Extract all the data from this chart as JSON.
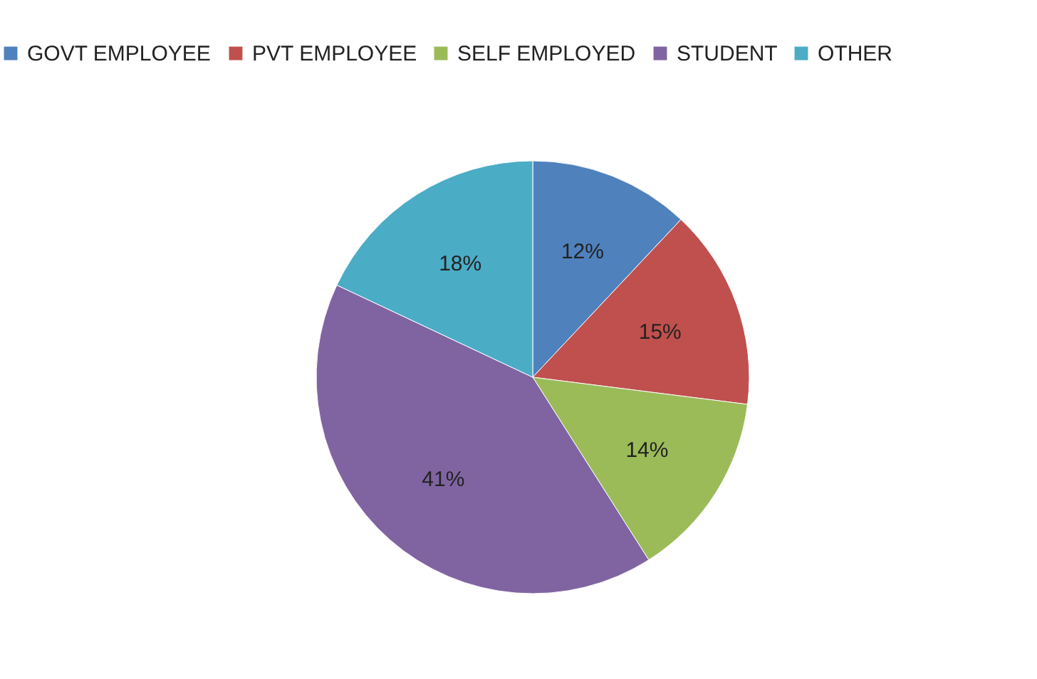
{
  "chart_data": {
    "type": "pie",
    "categories": [
      "GOVT EMPLOYEE",
      "PVT EMPLOYEE",
      "SELF EMPLOYED",
      "STUDENT",
      "OTHER"
    ],
    "values": [
      12,
      15,
      14,
      41,
      18
    ],
    "colors": [
      "#4f81bd",
      "#c0504d",
      "#9bbb59",
      "#8064a2",
      "#4bacc6"
    ],
    "value_labels": [
      "12%",
      "15%",
      "14%",
      "41%",
      "18%"
    ],
    "legend": "top"
  }
}
